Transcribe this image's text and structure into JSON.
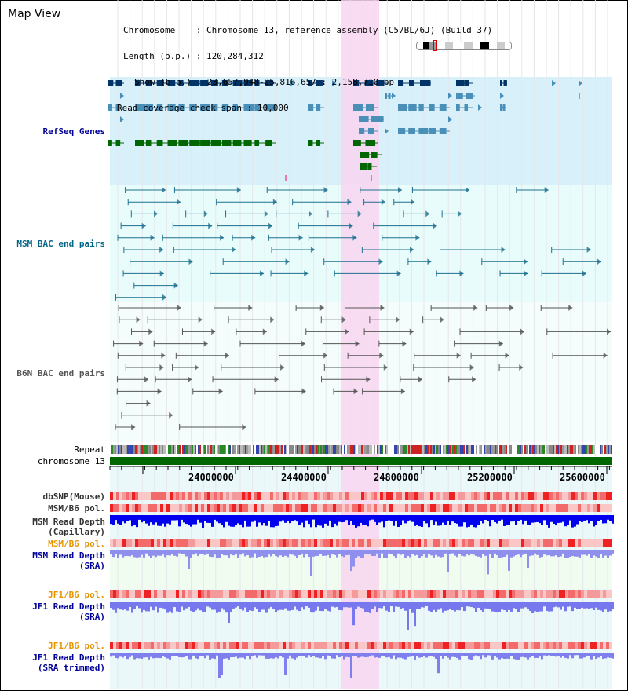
{
  "view_title": "Map View",
  "info": {
    "chromosome_key": "Chromosome",
    "chromosome_value": "Chromosome 13, reference assembly (C57BL/6J) (Build 37)",
    "length_key": "Length (b.p.)",
    "length_value": "120,284,312",
    "show_key": "Show (b.p.)",
    "show_value": "23,657,948-25,816,657 : 2,158,710 bp",
    "coverage_key": "Read coverage check span",
    "coverage_value": "10,000"
  },
  "tracks": {
    "refseq": "RefSeq Genes",
    "msm_bac": "MSM BAC end pairs",
    "b6n_bac": "B6N BAC end pairs",
    "repeat": "Repeat",
    "chromosome": "chromosome 13",
    "dbsnp": "dbSNP(Mouse)",
    "msm_pol_1": "MSM/B6 pol.",
    "msm_depth_cap_1": "MSM Read Depth",
    "msm_depth_cap_2": "(Capillary)",
    "msm_pol_2": "MSM/B6 pol.",
    "msm_depth_sra_1": "MSM Read Depth",
    "msm_depth_sra_2": "(SRA)",
    "jf1_pol_1": "JF1/B6 pol.",
    "jf1_depth_sra_1": "JF1 Read Depth",
    "jf1_depth_sra_2": "(SRA)",
    "jf1_pol_2": "JF1/B6 pol.",
    "jf1_depth_trim_1": "JF1 Read Depth",
    "jf1_depth_trim_2": "(SRA trimmed)"
  },
  "axis": {
    "ticks": [
      "24000000",
      "24400000",
      "24800000",
      "25200000",
      "25600000"
    ]
  },
  "colors": {
    "highlight": "#f8d6f0",
    "refseq_bg": "#d8f0fa",
    "bac_bg": "#e8fcfc",
    "navy": "#003366",
    "steel": "#4a8fb8",
    "green": "#006600",
    "depth_blue": "#0000ee",
    "depth_light": "#7777ee",
    "label_blue": "#000099",
    "label_orange": "#e69500"
  }
}
